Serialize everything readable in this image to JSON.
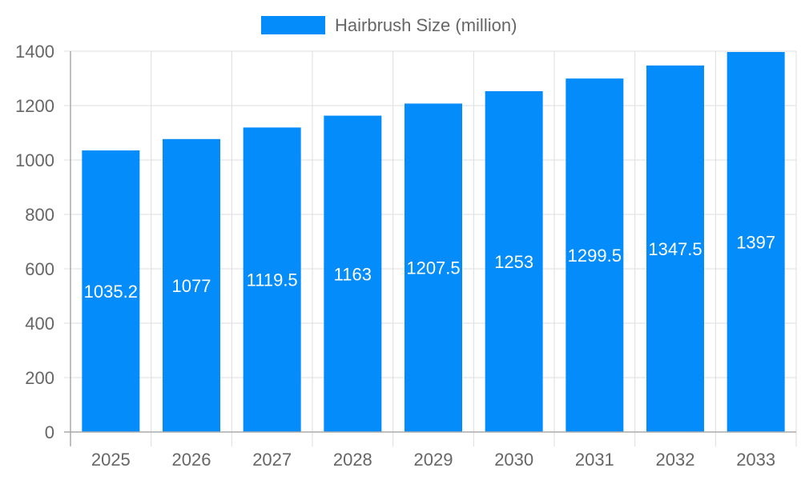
{
  "chart_data": {
    "type": "bar",
    "categories": [
      "2025",
      "2026",
      "2027",
      "2028",
      "2029",
      "2030",
      "2031",
      "2032",
      "2033"
    ],
    "series": [
      {
        "name": "Hairbrush Size (million)",
        "values": [
          1035.2,
          1077,
          1119.5,
          1163,
          1207.5,
          1253,
          1299.5,
          1347.5,
          1397
        ]
      }
    ],
    "data_labels": [
      "1035.2",
      "1077",
      "1119.5",
      "1163",
      "1207.5",
      "1253",
      "1299.5",
      "1347.5",
      "1397"
    ],
    "ylim": [
      0,
      1400
    ],
    "yticks": [
      0,
      200,
      400,
      600,
      800,
      1000,
      1200,
      1400
    ],
    "grid": true,
    "legend": "top-center",
    "bar_color": "#048cfa"
  }
}
